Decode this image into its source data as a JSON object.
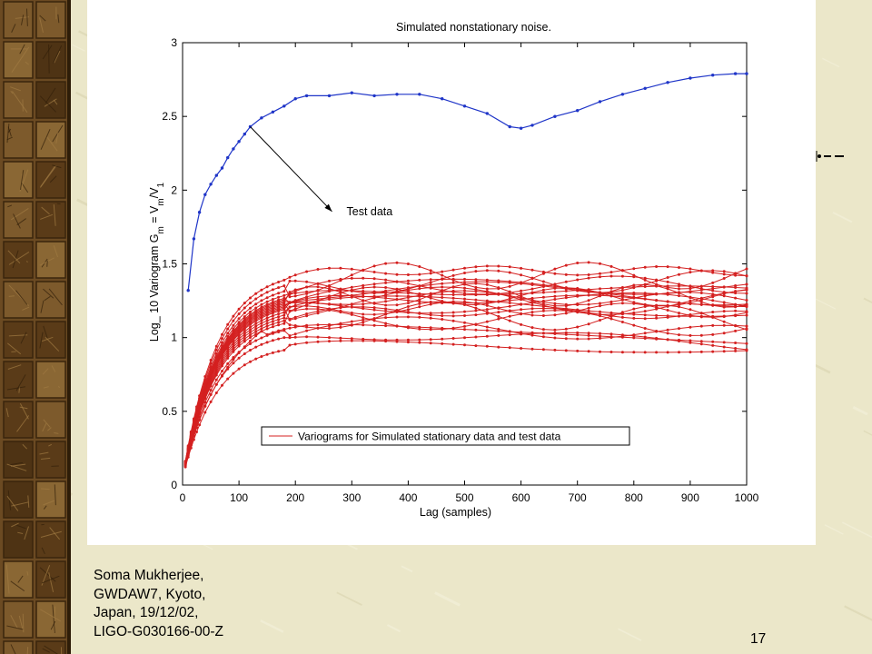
{
  "slide": {
    "footer_lines": [
      "Soma Mukherjee,",
      "GWDAW7, Kyoto,",
      "Japan, 19/12/02,",
      "LIGO-G030166-00-Z"
    ],
    "slide_number": "17",
    "background_color": "#ebe7c9",
    "strip_color": "#6b4a22"
  },
  "chart_data": {
    "type": "line",
    "title": "Simulated nonstationary noise.",
    "xlabel": "Lag (samples)",
    "ylabel": "Log_ 10 Variogram G_m = V_m/V_1",
    "xlim": [
      0,
      1000
    ],
    "ylim": [
      0,
      3
    ],
    "xticks": [
      0,
      100,
      200,
      300,
      400,
      500,
      600,
      700,
      800,
      900,
      1000
    ],
    "yticks": [
      0,
      0.5,
      1,
      1.5,
      2,
      2.5,
      3
    ],
    "grid": false,
    "legend": {
      "position": "bottom-center",
      "entries": [
        "Variograms for Simulated stationary data and test data"
      ]
    },
    "annotation": {
      "text": "Test data",
      "arrow_from": [
        120,
        2.43
      ],
      "text_at": [
        310,
        1.88
      ]
    },
    "test_series": {
      "name": "Test data",
      "color": "#1f35c8",
      "points": [
        [
          10,
          1.32
        ],
        [
          20,
          1.67
        ],
        [
          30,
          1.85
        ],
        [
          40,
          1.97
        ],
        [
          50,
          2.04
        ],
        [
          60,
          2.1
        ],
        [
          70,
          2.15
        ],
        [
          80,
          2.22
        ],
        [
          90,
          2.28
        ],
        [
          100,
          2.33
        ],
        [
          110,
          2.38
        ],
        [
          120,
          2.43
        ],
        [
          140,
          2.49
        ],
        [
          160,
          2.53
        ],
        [
          180,
          2.57
        ],
        [
          200,
          2.62
        ],
        [
          220,
          2.64
        ],
        [
          260,
          2.64
        ],
        [
          300,
          2.66
        ],
        [
          340,
          2.64
        ],
        [
          380,
          2.65
        ],
        [
          420,
          2.65
        ],
        [
          460,
          2.62
        ],
        [
          500,
          2.57
        ],
        [
          540,
          2.52
        ],
        [
          580,
          2.43
        ],
        [
          600,
          2.42
        ],
        [
          620,
          2.44
        ],
        [
          660,
          2.5
        ],
        [
          700,
          2.54
        ],
        [
          740,
          2.6
        ],
        [
          780,
          2.65
        ],
        [
          820,
          2.69
        ],
        [
          860,
          2.73
        ],
        [
          900,
          2.76
        ],
        [
          940,
          2.78
        ],
        [
          980,
          2.79
        ],
        [
          1000,
          2.79
        ]
      ]
    },
    "stationary_series": {
      "name": "Variograms for Simulated stationary data and test data",
      "color": "#d42020",
      "count": 22,
      "plateaus": [
        0.96,
        1.05,
        1.1,
        1.15,
        1.17,
        1.19,
        1.21,
        1.23,
        1.25,
        1.26,
        1.27,
        1.28,
        1.29,
        1.3,
        1.31,
        1.32,
        1.33,
        1.35,
        1.38,
        1.42,
        1.46,
        1.13
      ],
      "end_values": [
        0.92,
        0.95,
        1.02,
        1.08,
        1.12,
        1.15,
        1.18,
        1.2,
        1.22,
        1.24,
        1.25,
        1.26,
        1.27,
        1.28,
        1.3,
        1.32,
        1.34,
        1.36,
        1.38,
        1.42,
        1.45,
        0.98
      ]
    }
  }
}
